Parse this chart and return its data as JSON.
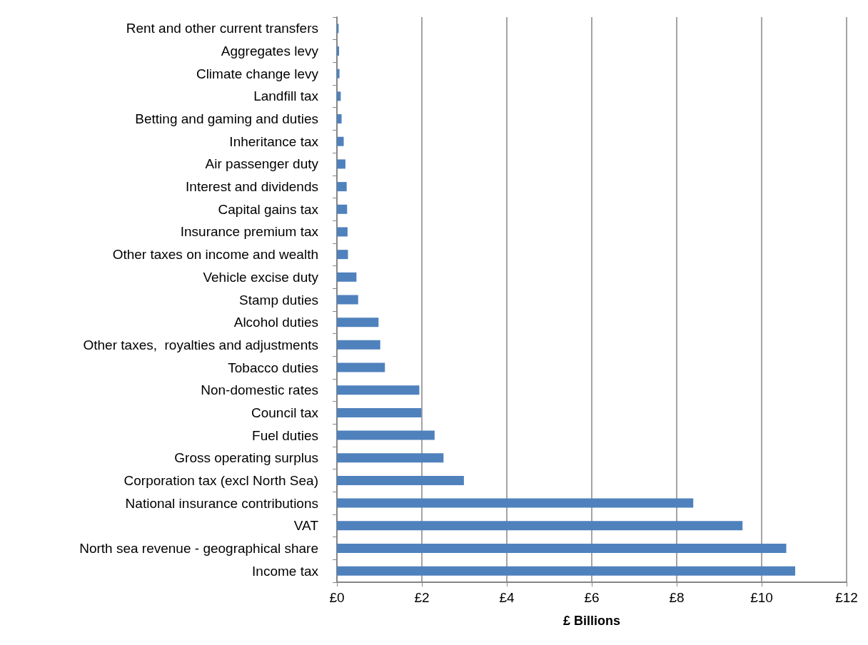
{
  "chart_data": {
    "type": "bar",
    "orientation": "horizontal",
    "xlabel": "£ Billions",
    "categories": [
      "Rent and other current transfers",
      "Aggregates levy",
      "Climate change levy",
      "Landfill tax",
      "Betting and gaming and duties",
      "Inheritance tax",
      "Air passenger duty",
      "Interest and dividends",
      "Capital gains tax",
      "Insurance premium tax",
      "Other taxes on income and wealth",
      "Vehicle excise duty",
      "Stamp duties",
      "Alcohol duties",
      "Other taxes,  royalties and adjustments",
      "Tobacco duties",
      "Non-domestic rates",
      "Council tax",
      "Fuel duties",
      "Gross operating surplus",
      "Corporation tax (excl North Sea)",
      "National insurance contributions",
      "VAT",
      "North sea revenue - geographical share",
      "Income tax"
    ],
    "values": [
      0.04,
      0.05,
      0.06,
      0.09,
      0.11,
      0.16,
      0.2,
      0.23,
      0.24,
      0.25,
      0.26,
      0.46,
      0.5,
      0.98,
      1.02,
      1.13,
      1.94,
      1.99,
      2.3,
      2.51,
      2.99,
      8.39,
      9.55,
      10.58,
      10.79
    ],
    "color": "#4f81bd",
    "xlim": [
      0,
      12
    ],
    "xticks": [
      {
        "value": 0,
        "label": "£0"
      },
      {
        "value": 2,
        "label": "£2"
      },
      {
        "value": 4,
        "label": "£4"
      },
      {
        "value": 6,
        "label": "£6"
      },
      {
        "value": 8,
        "label": "£8"
      },
      {
        "value": 10,
        "label": "£10"
      },
      {
        "value": 12,
        "label": "£12"
      }
    ],
    "grid": "x"
  }
}
